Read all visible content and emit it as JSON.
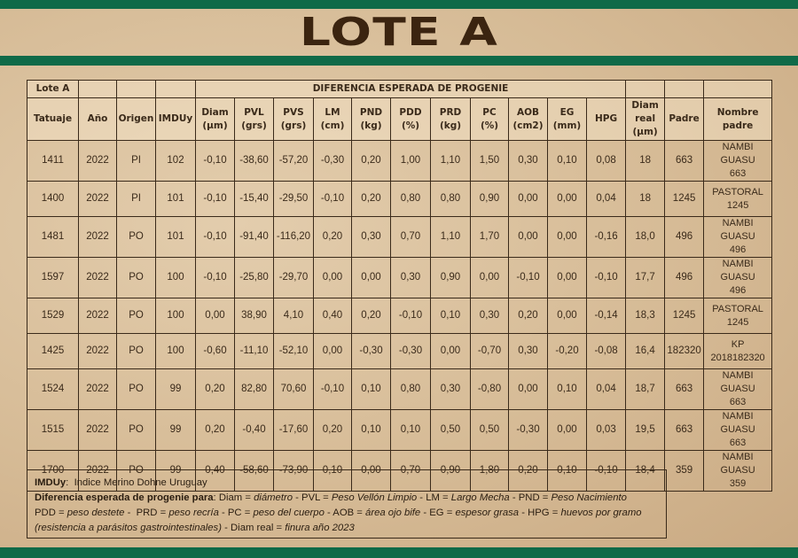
{
  "title": "LOTE A",
  "colors": {
    "green_band": "#0f6a48",
    "title": "#3b2410"
  },
  "table": {
    "lote_label": "Lote A",
    "group_header": "DIFERENCIA ESPERADA DE PROGENIE",
    "columns": [
      [
        "Tatuaje"
      ],
      [
        "Año"
      ],
      [
        "Origen"
      ],
      [
        "IMDUy"
      ],
      [
        "Diam",
        "(µm)"
      ],
      [
        "PVL",
        "(grs)"
      ],
      [
        "PVS",
        "(grs)"
      ],
      [
        "LM",
        "(cm)"
      ],
      [
        "PND",
        "(kg)"
      ],
      [
        "PDD",
        "(%)"
      ],
      [
        "PRD",
        "(kg)"
      ],
      [
        "PC",
        "(%)"
      ],
      [
        "AOB",
        "(cm2)"
      ],
      [
        "EG",
        "(mm)"
      ],
      [
        "HPG"
      ],
      [
        "Diam",
        "real",
        "(µm)"
      ],
      [
        "Padre"
      ],
      [
        "Nombre",
        "padre"
      ]
    ],
    "rows": [
      [
        "1411",
        "2022",
        "PI",
        "102",
        "-0,10",
        "-38,60",
        "-57,20",
        "-0,30",
        "0,20",
        "1,00",
        "1,10",
        "1,50",
        "0,30",
        "0,10",
        "0,08",
        "18",
        "663",
        [
          "NAMBI GUASU",
          "663"
        ]
      ],
      [
        "1400",
        "2022",
        "PI",
        "101",
        "-0,10",
        "-15,40",
        "-29,50",
        "-0,10",
        "0,20",
        "0,80",
        "0,80",
        "0,90",
        "0,00",
        "0,00",
        "0,04",
        "18",
        "1245",
        [
          "PASTORAL",
          "1245"
        ]
      ],
      [
        "1481",
        "2022",
        "PO",
        "101",
        "-0,10",
        "-91,40",
        "-116,20",
        "0,20",
        "0,30",
        "0,70",
        "1,10",
        "1,70",
        "0,00",
        "0,00",
        "-0,16",
        "18,0",
        "496",
        [
          "NAMBI GUASU",
          "496"
        ]
      ],
      [
        "1597",
        "2022",
        "PO",
        "100",
        "-0,10",
        "-25,80",
        "-29,70",
        "0,00",
        "0,00",
        "0,30",
        "0,90",
        "0,00",
        "-0,10",
        "0,00",
        "-0,10",
        "17,7",
        "496",
        [
          "NAMBI GUASU",
          "496"
        ]
      ],
      [
        "1529",
        "2022",
        "PO",
        "100",
        "0,00",
        "38,90",
        "4,10",
        "0,40",
        "0,20",
        "-0,10",
        "0,10",
        "0,30",
        "0,20",
        "0,00",
        "-0,14",
        "18,3",
        "1245",
        [
          "PASTORAL",
          "1245"
        ]
      ],
      [
        "1425",
        "2022",
        "PO",
        "100",
        "-0,60",
        "-11,10",
        "-52,10",
        "0,00",
        "-0,30",
        "-0,30",
        "0,00",
        "-0,70",
        "0,30",
        "-0,20",
        "-0,08",
        "16,4",
        "182320",
        [
          "KP",
          "2018182320"
        ]
      ],
      [
        "1524",
        "2022",
        "PO",
        "99",
        "0,20",
        "82,80",
        "70,60",
        "-0,10",
        "0,10",
        "0,80",
        "0,30",
        "-0,80",
        "0,00",
        "0,10",
        "0,04",
        "18,7",
        "663",
        [
          "NAMBI GUASU",
          "663"
        ]
      ],
      [
        "1515",
        "2022",
        "PO",
        "99",
        "0,20",
        "-0,40",
        "-17,60",
        "0,20",
        "0,10",
        "0,10",
        "0,50",
        "0,50",
        "-0,30",
        "0,00",
        "0,03",
        "19,5",
        "663",
        [
          "NAMBI GUASU",
          "663"
        ]
      ],
      [
        "1700",
        "2022",
        "PO",
        "99",
        "0,40",
        "-58,60",
        "-73,90",
        "0,10",
        "0,00",
        "0,70",
        "0,90",
        "1,80",
        "0,20",
        "0,10",
        "-0,10",
        "18,4",
        "359",
        [
          "NAMBI GUASU",
          "359"
        ]
      ]
    ]
  },
  "legend": {
    "lines": [
      [
        {
          "t": "IMDUy",
          "s": "b"
        },
        {
          "t": ":  Indice Merino Dohne Uruguay",
          "s": ""
        }
      ],
      [
        {
          "t": "Diferencia esperada de progenie para",
          "s": "b"
        },
        {
          "t": ": Diam = ",
          "s": ""
        },
        {
          "t": "diámetro",
          "s": "i"
        },
        {
          "t": " - PVL = ",
          "s": ""
        },
        {
          "t": "Peso Vellón Limpio",
          "s": "i"
        },
        {
          "t": " - LM = ",
          "s": ""
        },
        {
          "t": "Largo Mecha",
          "s": "i"
        },
        {
          "t": " - PND = ",
          "s": ""
        },
        {
          "t": "Peso Nacimiento",
          "s": "i"
        }
      ],
      [
        {
          "t": "PDD = ",
          "s": ""
        },
        {
          "t": "peso destete",
          "s": "i"
        },
        {
          "t": " -  PRD = ",
          "s": ""
        },
        {
          "t": "peso recría",
          "s": "i"
        },
        {
          "t": " - PC = ",
          "s": ""
        },
        {
          "t": "peso del cuerpo",
          "s": "i"
        },
        {
          "t": " - AOB = ",
          "s": ""
        },
        {
          "t": "área ojo bife",
          "s": "i"
        },
        {
          "t": " - EG = ",
          "s": ""
        },
        {
          "t": "espesor grasa",
          "s": "i"
        },
        {
          "t": " - HPG = ",
          "s": ""
        },
        {
          "t": "huevos por gramo",
          "s": "i"
        }
      ],
      [
        {
          "t": "(resistencia a parásitos gastrointestinales)",
          "s": "i"
        },
        {
          "t": " - Diam real = ",
          "s": ""
        },
        {
          "t": "finura año 2023",
          "s": "i"
        }
      ]
    ]
  }
}
